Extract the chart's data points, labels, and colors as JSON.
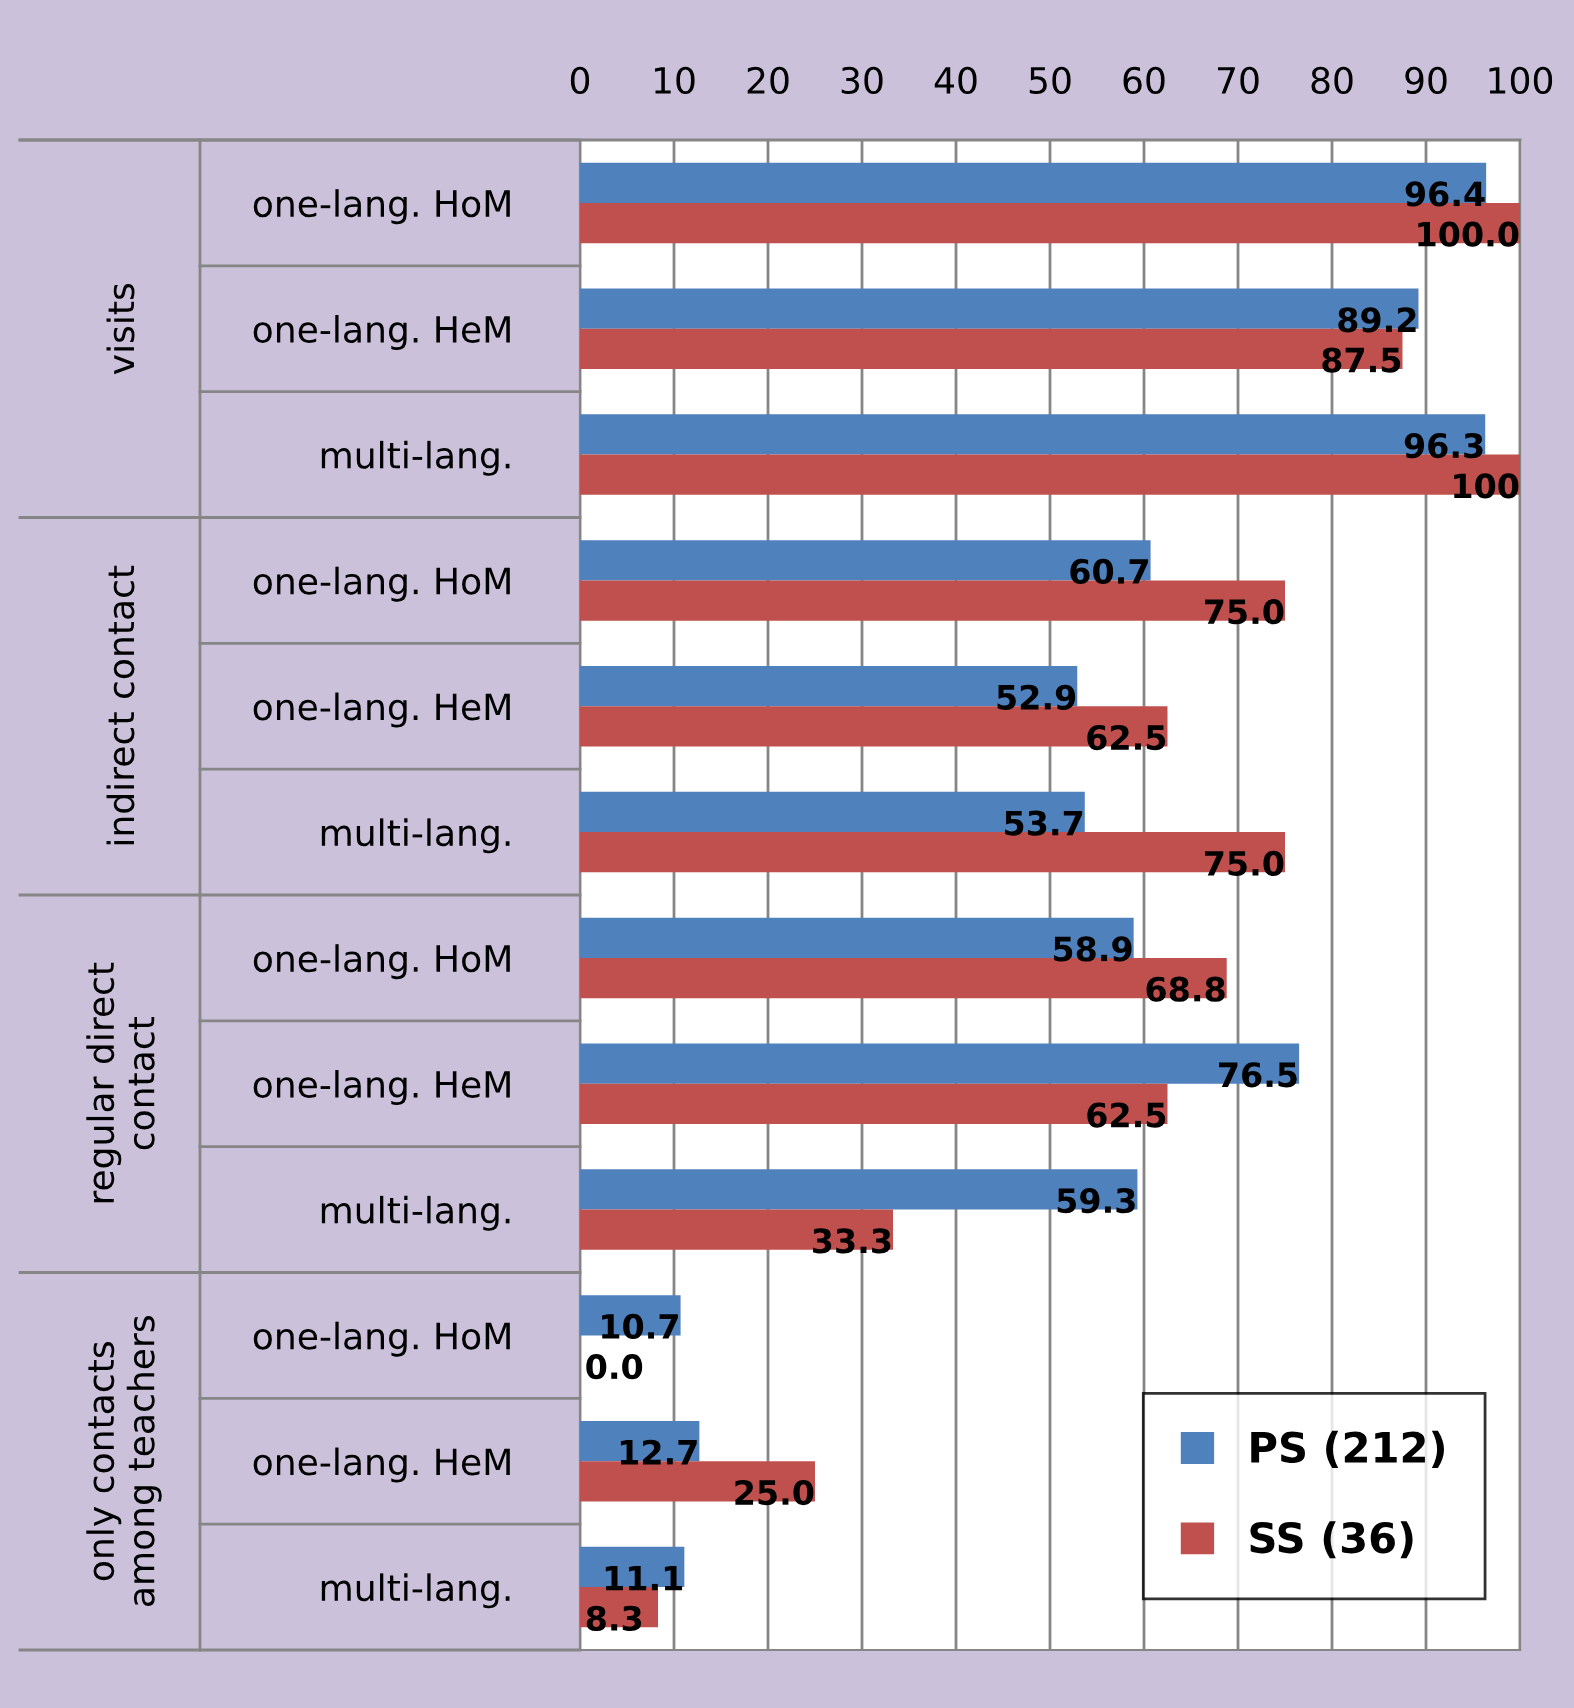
{
  "chart_data": {
    "type": "bar",
    "orientation": "horizontal",
    "categories": [
      "one-lang. HoM",
      "one-lang. HeM",
      "multi-lang.",
      "one-lang. HoM",
      "one-lang. HeM",
      "multi-lang.",
      "one-lang. HoM",
      "one-lang. HeM",
      "multi-lang.",
      "one-lang. HoM",
      "one-lang. HeM",
      "multi-lang."
    ],
    "annotations": [
      "visits",
      "indirect contact",
      "regular direct\ncontact",
      "only contacts\namong teachers"
    ],
    "series": [
      {
        "name": "PS (212)",
        "color": "#4f81bd",
        "values": [
          96.4,
          89.2,
          96.3,
          60.7,
          52.9,
          53.7,
          58.9,
          76.5,
          59.3,
          10.7,
          12.7,
          11.1
        ],
        "value_labels": [
          "96.4",
          "89.2",
          "96.3",
          "60.7",
          "52.9",
          "53.7",
          "58.9",
          "76.5",
          "59.3",
          "10.7",
          "12.7",
          "11.1"
        ]
      },
      {
        "name": "SS (36)",
        "color": "#c0504d",
        "values": [
          100.0,
          87.5,
          100,
          75.0,
          62.5,
          75.0,
          68.8,
          62.5,
          33.3,
          0.0,
          25.0,
          8.3
        ],
        "value_labels": [
          "100.0",
          "87.5",
          "100",
          "75.0",
          "62.5",
          "75.0",
          "68.8",
          "62.5",
          "33.3",
          "0.0",
          "25.0",
          "8.3"
        ]
      }
    ],
    "xlim": [
      0,
      100
    ],
    "xticks": [
      0,
      10,
      20,
      30,
      40,
      50,
      60,
      70,
      80,
      90,
      100
    ],
    "grid": "x",
    "legend": "bottom right"
  }
}
